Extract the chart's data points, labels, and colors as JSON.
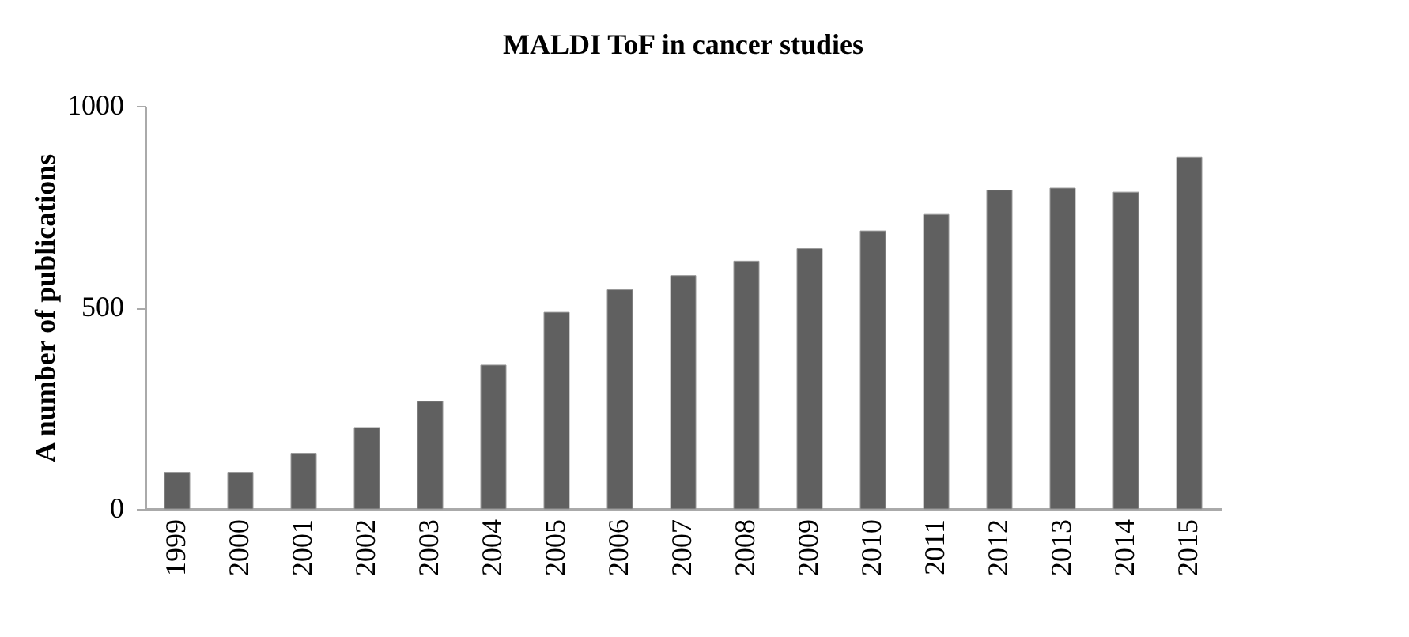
{
  "chart_data": {
    "type": "bar",
    "title": "MALDI ToF in cancer studies",
    "ylabel": "A number of publications",
    "categories": [
      "1999",
      "2000",
      "2001",
      "2002",
      "2003",
      "2004",
      "2005",
      "2006",
      "2007",
      "2008",
      "2009",
      "2010",
      "2011",
      "2012",
      "2013",
      "2014",
      "2015"
    ],
    "values": [
      91,
      91,
      138,
      202,
      267,
      357,
      488,
      544,
      579,
      615,
      646,
      690,
      731,
      791,
      796,
      786,
      872
    ],
    "color": "#606060",
    "ylim": [
      0,
      1000
    ],
    "yticks": [
      0,
      500,
      1000
    ],
    "grid": false
  }
}
